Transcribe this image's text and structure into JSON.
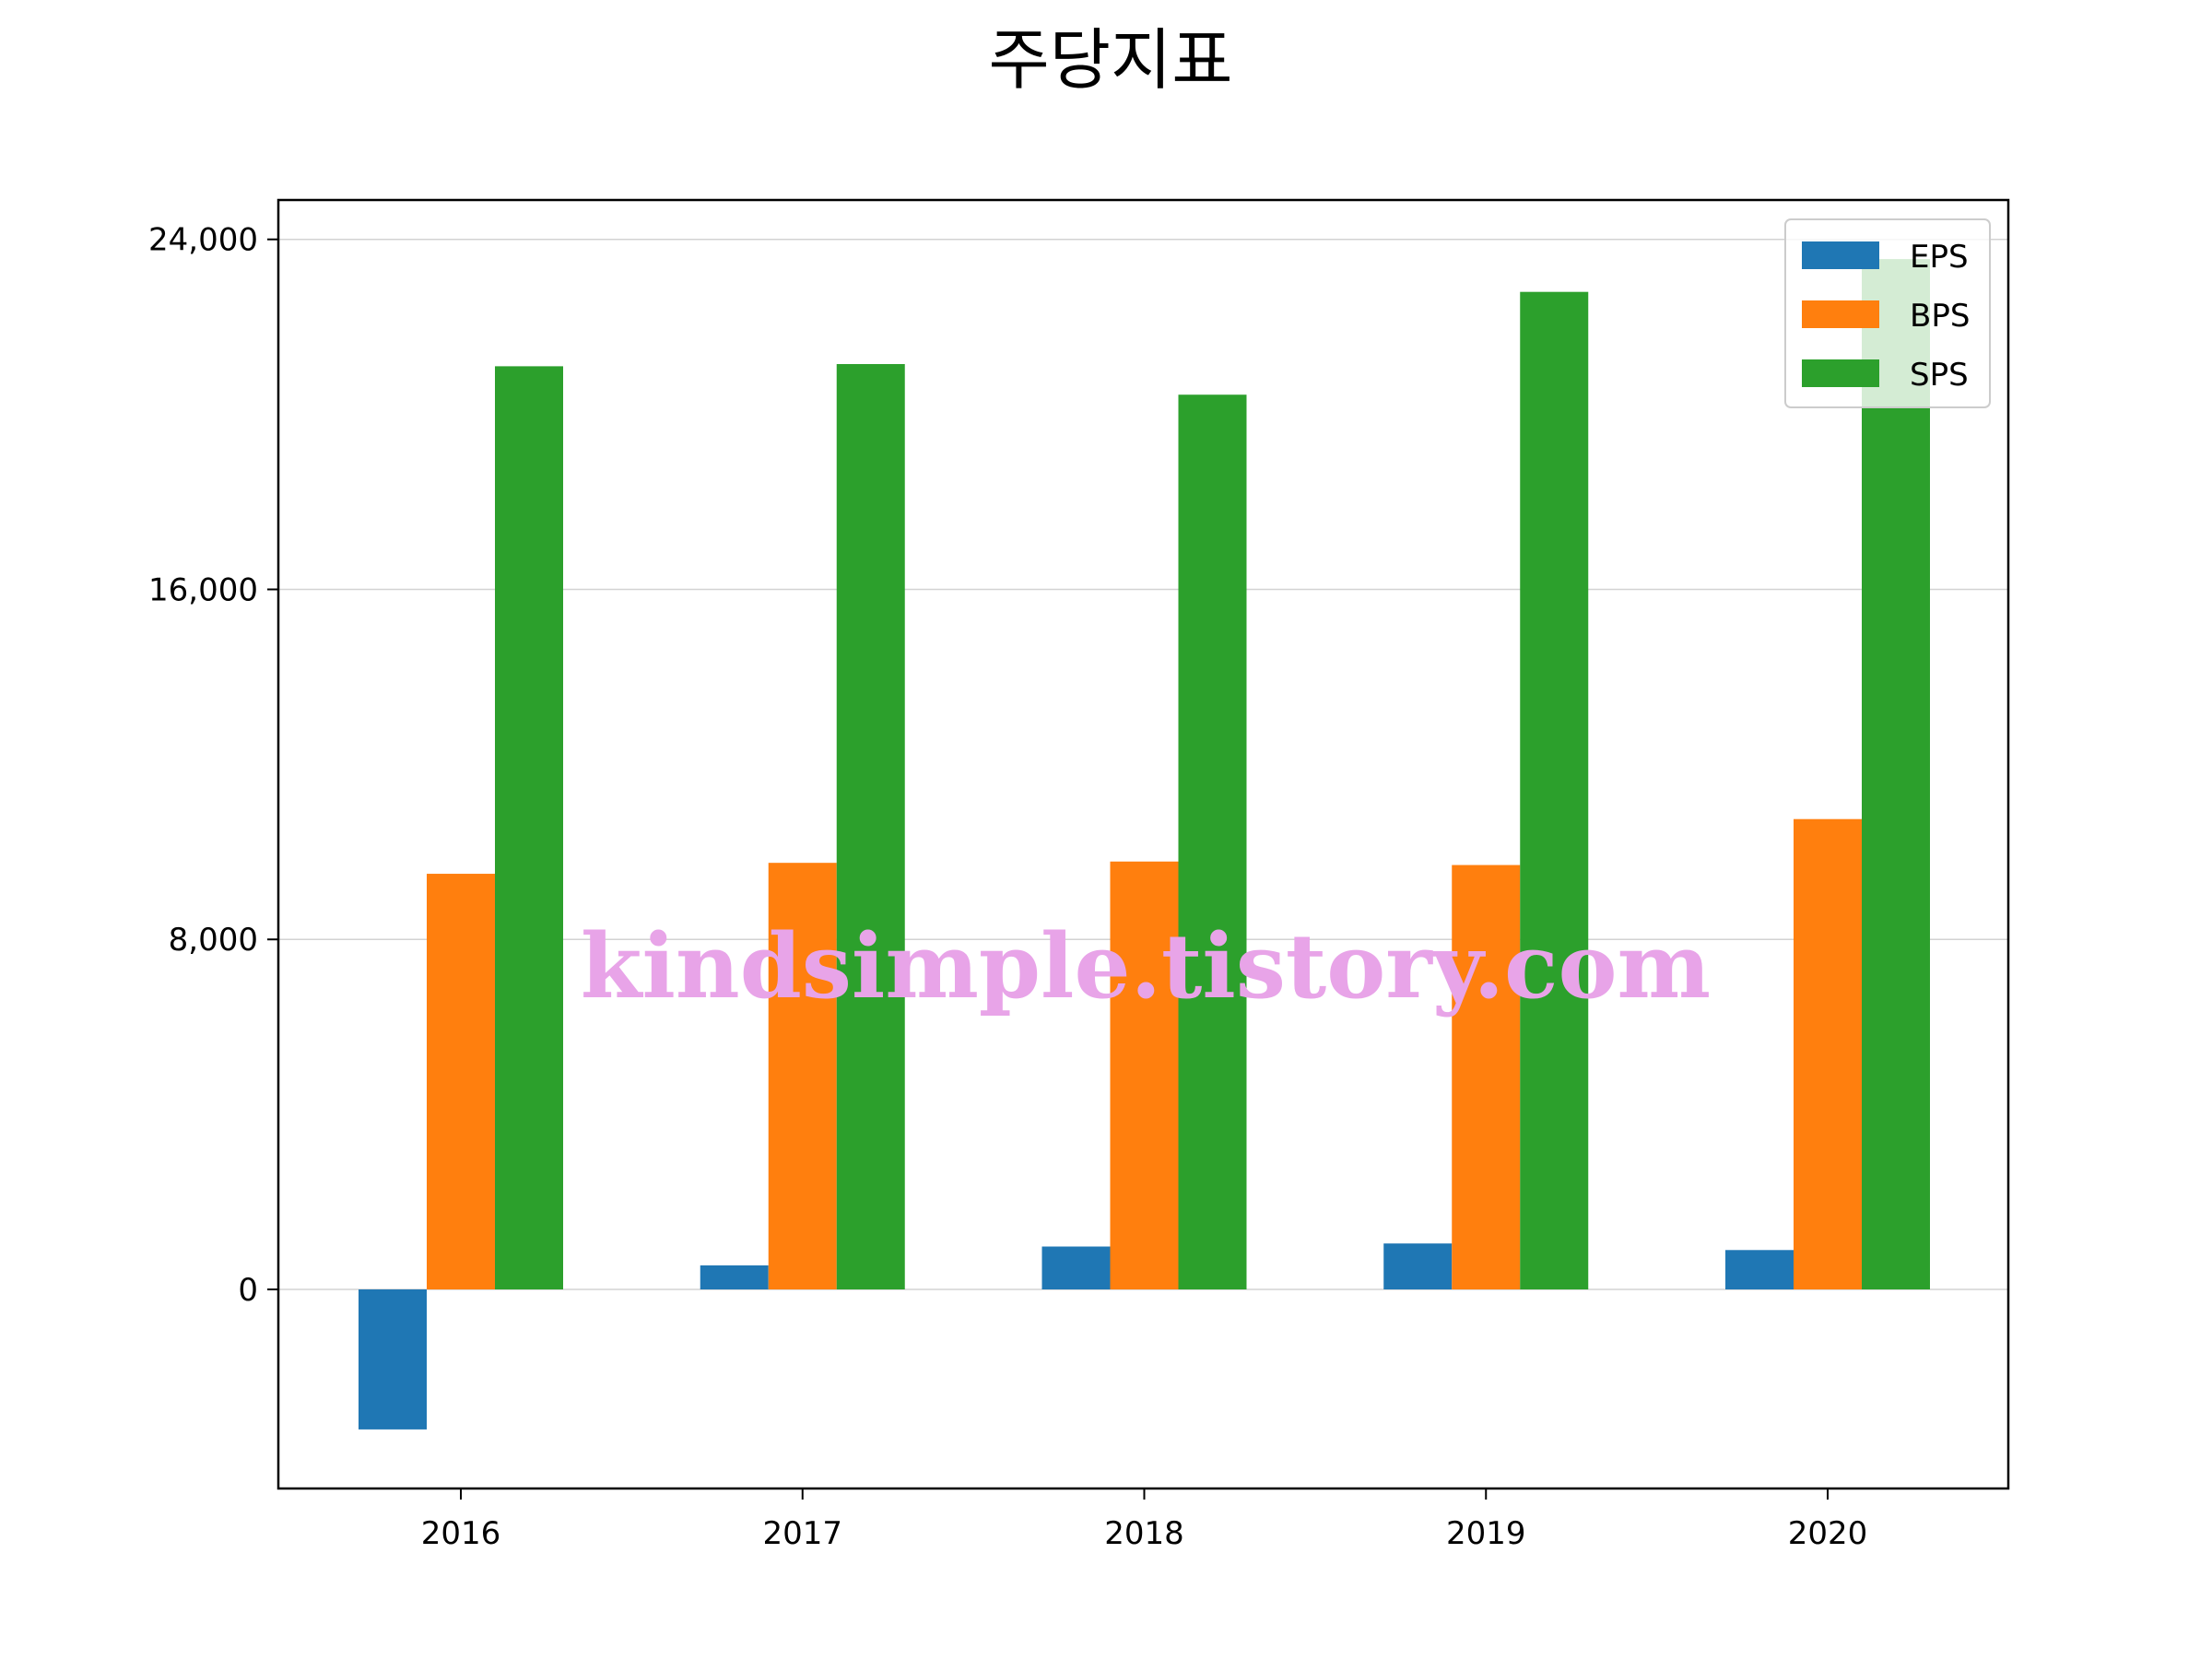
{
  "chart_data": {
    "type": "bar",
    "title": "주당지표",
    "categories": [
      "2016",
      "2017",
      "2018",
      "2019",
      "2020"
    ],
    "series": [
      {
        "name": "EPS",
        "values": [
          -3200,
          550,
          980,
          1050,
          900
        ],
        "color": "#1f77b4"
      },
      {
        "name": "BPS",
        "values": [
          9500,
          9750,
          9780,
          9700,
          10750
        ],
        "color": "#ff7f0e"
      },
      {
        "name": "SPS",
        "values": [
          21100,
          21150,
          20450,
          22800,
          23550
        ],
        "color": "#2ca02c"
      }
    ],
    "yticks": [
      0,
      8000,
      16000,
      24000
    ],
    "ytick_labels": [
      "0",
      "8,000",
      "16,000",
      "24,000"
    ],
    "ylim": [
      -4550,
      24900
    ],
    "grid": "y",
    "legend_position": "top-right"
  },
  "watermark": {
    "text": "kindsimple.tistory.com"
  }
}
